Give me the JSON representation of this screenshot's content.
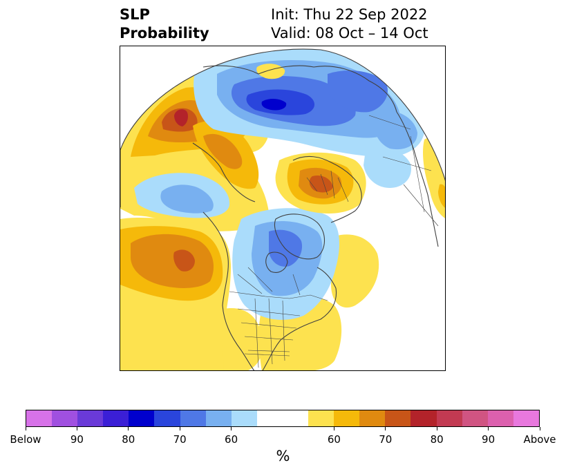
{
  "title": {
    "left_line1": "SLP",
    "left_line2": "Probability",
    "right_line1": "Init: Thu 22 Sep 2022",
    "right_line2": "Valid: 08 Oct – 14 Oct"
  },
  "colorbar": {
    "colors": [
      "#d772e8",
      "#a050e0",
      "#6a3ad8",
      "#3b1fd6",
      "#0000cd",
      "#2a45dc",
      "#4f78e6",
      "#78b0f0",
      "#aadcfb",
      "#ffffff",
      "#ffffff",
      "#fde24f",
      "#f5b90a",
      "#e08a10",
      "#c85518",
      "#b3232a",
      "#c23a52",
      "#d05482",
      "#dc60ae",
      "#e878de"
    ],
    "tick_labels": [
      "Below",
      "90",
      "80",
      "70",
      "60",
      "60",
      "70",
      "80",
      "90",
      "Above"
    ],
    "unit": "%"
  },
  "map": {
    "palette": {
      "yellow": "#fde24f",
      "gold": "#f5b90a",
      "orange": "#e08a10",
      "rust": "#c85518",
      "red": "#b3232a",
      "lightblue": "#aadcfb",
      "skyblue": "#78b0f0",
      "blue": "#4f78e6",
      "royal": "#2a45dc",
      "deepblue": "#0000cd",
      "coast": "#404040"
    }
  }
}
